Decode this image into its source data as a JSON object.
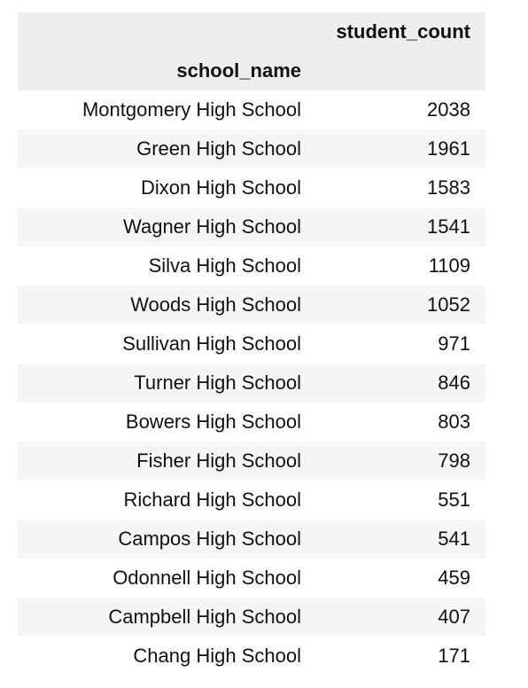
{
  "table": {
    "column_header": "student_count",
    "index_name": "school_name",
    "rows": [
      {
        "school_name": "Montgomery High School",
        "student_count": "2038"
      },
      {
        "school_name": "Green High School",
        "student_count": "1961"
      },
      {
        "school_name": "Dixon High School",
        "student_count": "1583"
      },
      {
        "school_name": "Wagner High School",
        "student_count": "1541"
      },
      {
        "school_name": "Silva High School",
        "student_count": "1109"
      },
      {
        "school_name": "Woods High School",
        "student_count": "1052"
      },
      {
        "school_name": "Sullivan High School",
        "student_count": "971"
      },
      {
        "school_name": "Turner High School",
        "student_count": "846"
      },
      {
        "school_name": "Bowers High School",
        "student_count": "803"
      },
      {
        "school_name": "Fisher High School",
        "student_count": "798"
      },
      {
        "school_name": "Richard High School",
        "student_count": "551"
      },
      {
        "school_name": "Campos High School",
        "student_count": "541"
      },
      {
        "school_name": "Odonnell High School",
        "student_count": "459"
      },
      {
        "school_name": "Campbell High School",
        "student_count": "407"
      },
      {
        "school_name": "Chang High School",
        "student_count": "171"
      }
    ]
  }
}
